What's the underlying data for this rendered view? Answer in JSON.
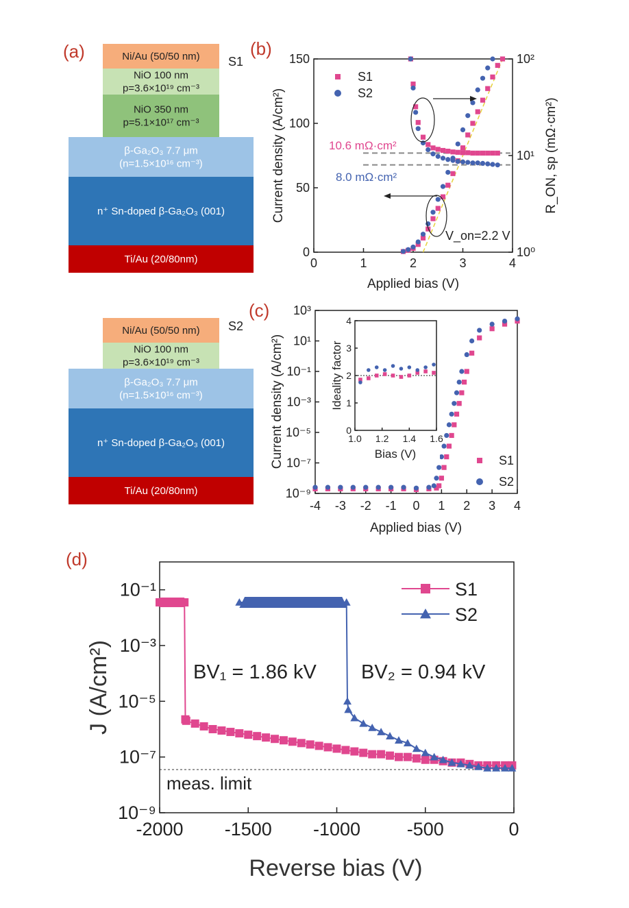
{
  "panels": {
    "a": {
      "label": "(a)",
      "sample": "S1",
      "layers": [
        {
          "lines": [
            "Ni/Au (50/50 nm)"
          ],
          "color": "#f6ad7b",
          "text_color": "#222"
        },
        {
          "lines": [
            "NiO 100 nm",
            "p=3.6×10¹⁹ cm⁻³"
          ],
          "color": "#c7e2b4",
          "text_color": "#222"
        },
        {
          "lines": [
            "NiO 350 nm",
            "p=5.1×10¹⁷ cm⁻³"
          ],
          "color": "#8fc27b",
          "text_color": "#222"
        },
        {
          "lines": [
            "β-Ga₂O₃ 7.7 μm",
            "(n=1.5×10¹⁶ cm⁻³)"
          ],
          "color": "#9dc3e6",
          "text_color": "#ffffff"
        },
        {
          "lines": [
            "n⁺ Sn-doped β-Ga₂O₃ (001)"
          ],
          "color": "#2e75b6",
          "text_color": "#ffffff"
        },
        {
          "lines": [
            "Ti/Au (20/80nm)"
          ],
          "color": "#c00000",
          "text_color": "#ffffff"
        }
      ]
    },
    "a2": {
      "sample": "S2",
      "layers": [
        {
          "lines": [
            "Ni/Au (50/50 nm)"
          ],
          "color": "#f6ad7b",
          "text_color": "#222"
        },
        {
          "lines": [
            "NiO 100 nm",
            "p=3.6×10¹⁹ cm⁻³"
          ],
          "color": "#c7e2b4",
          "text_color": "#222"
        },
        {
          "lines": [
            "β-Ga₂O₃ 7.7 μm",
            "(n=1.5×10¹⁶ cm⁻³)"
          ],
          "color": "#9dc3e6",
          "text_color": "#ffffff"
        },
        {
          "lines": [
            "n⁺ Sn-doped β-Ga₂O₃ (001)"
          ],
          "color": "#2e75b6",
          "text_color": "#ffffff"
        },
        {
          "lines": [
            "Ti/Au (20/80nm)"
          ],
          "color": "#c00000",
          "text_color": "#ffffff"
        }
      ]
    }
  },
  "colors": {
    "S1": "#e0478f",
    "S2": "#4463b0",
    "label": "#c0392b",
    "fit": "#e6d23a"
  },
  "chart_data": [
    {
      "id": "b",
      "label": "(b)",
      "type": "scatter",
      "xlabel": "Applied bias (V)",
      "ylabel": "Current density (A/cm²)",
      "y2label": "R_ON, sp (mΩ·cm²)",
      "xlim": [
        0,
        4
      ],
      "ylim": [
        0,
        150
      ],
      "y2lim": [
        1,
        100
      ],
      "y2scale": "log",
      "xticks": [
        "0",
        "1",
        "2",
        "3",
        "4"
      ],
      "yticks": [
        "0",
        "50",
        "100",
        "150"
      ],
      "y2ticks": [
        "10⁰",
        "10¹",
        "10²"
      ],
      "legend": [
        "S1",
        "S2"
      ],
      "legend_position": "top-left",
      "annotations": [
        "10.6 mΩ·cm²",
        "8.0 mΩ·cm²",
        "V_on=2.2 V"
      ],
      "series": [
        {
          "name": "S1",
          "kind": "J",
          "x": [
            1.8,
            1.9,
            2.0,
            2.1,
            2.2,
            2.3,
            2.4,
            2.5,
            2.6,
            2.7,
            2.8,
            2.9,
            3.0,
            3.1,
            3.2,
            3.3,
            3.4,
            3.5,
            3.6,
            3.7,
            3.8
          ],
          "y": [
            0.5,
            1.5,
            3,
            6,
            11,
            18,
            26,
            34,
            43,
            52,
            61,
            71,
            81,
            91,
            100,
            109,
            118,
            127,
            136,
            145,
            150
          ]
        },
        {
          "name": "S2",
          "kind": "J",
          "x": [
            1.8,
            1.9,
            2.0,
            2.1,
            2.2,
            2.3,
            2.4,
            2.5,
            2.6,
            2.7,
            2.8,
            2.9,
            3.0,
            3.1,
            3.2,
            3.3,
            3.4,
            3.5,
            3.6
          ],
          "y": [
            0.6,
            2,
            4,
            8,
            14,
            22,
            31,
            41,
            51,
            62,
            73,
            84,
            95,
            106,
            116,
            126,
            135,
            143,
            150
          ]
        },
        {
          "name": "S1",
          "kind": "Ron",
          "x": [
            1.95,
            2.0,
            2.05,
            2.1,
            2.2,
            2.3,
            2.4,
            2.5,
            2.6,
            2.7,
            2.8,
            2.9,
            3.0,
            3.1,
            3.2,
            3.3,
            3.4,
            3.5,
            3.6,
            3.7
          ],
          "y": [
            100,
            55,
            32,
            22,
            15.5,
            13,
            12,
            11.6,
            11.3,
            11.1,
            10.9,
            10.8,
            10.7,
            10.7,
            10.6,
            10.6,
            10.6,
            10.6,
            10.6,
            10.6
          ]
        },
        {
          "name": "S2",
          "kind": "Ron",
          "x": [
            1.95,
            2.0,
            2.05,
            2.1,
            2.2,
            2.3,
            2.4,
            2.5,
            2.6,
            2.7,
            2.8,
            2.9,
            3.0,
            3.1,
            3.2,
            3.3,
            3.4,
            3.5,
            3.6,
            3.7
          ],
          "y": [
            100,
            50,
            28,
            19,
            13.5,
            11.5,
            10.4,
            9.8,
            9.4,
            9.1,
            8.9,
            8.7,
            8.6,
            8.5,
            8.4,
            8.4,
            8.3,
            8.2,
            8.1,
            8.0
          ]
        }
      ]
    },
    {
      "id": "c",
      "label": "(c)",
      "type": "scatter",
      "xlabel": "Applied bias (V)",
      "ylabel": "Current density (A/cm²)",
      "xlim": [
        -4,
        4
      ],
      "ylim": [
        -9,
        3
      ],
      "yscale": "log",
      "xticks": [
        "-4",
        "-3",
        "-2",
        "-1",
        "0",
        "1",
        "2",
        "3",
        "4"
      ],
      "yticks": [
        "10⁻⁹",
        "10⁻⁷",
        "10⁻⁵",
        "10⁻³",
        "10⁻¹",
        "10¹",
        "10³"
      ],
      "legend": [
        "S1",
        "S2"
      ],
      "legend_position": "bottom-right",
      "series": [
        {
          "name": "S1",
          "x": [
            -4,
            -3.5,
            -3,
            -2.5,
            -2,
            -1.5,
            -1,
            -0.5,
            0,
            0.5,
            0.8,
            0.9,
            1.0,
            1.1,
            1.2,
            1.3,
            1.4,
            1.5,
            1.6,
            1.7,
            1.8,
            1.9,
            2.0,
            2.2,
            2.5,
            3.0,
            3.5,
            4.0
          ],
          "log_y": [
            -8.7,
            -8.7,
            -8.7,
            -8.7,
            -8.7,
            -8.7,
            -8.7,
            -8.7,
            -8.75,
            -8.7,
            -8.65,
            -8.5,
            -8.0,
            -7.3,
            -6.6,
            -5.9,
            -5.2,
            -4.5,
            -3.8,
            -3.1,
            -2.4,
            -1.7,
            -1.0,
            0.2,
            1.2,
            1.8,
            2.1,
            2.3
          ]
        },
        {
          "name": "S2",
          "x": [
            -4,
            -3.5,
            -3,
            -2.5,
            -2,
            -1.5,
            -1,
            -0.5,
            0,
            0.5,
            0.7,
            0.8,
            0.9,
            1.0,
            1.1,
            1.2,
            1.3,
            1.4,
            1.5,
            1.6,
            1.7,
            1.8,
            2.0,
            2.2,
            2.5,
            3.0,
            3.5,
            4.0
          ],
          "log_y": [
            -8.6,
            -8.6,
            -8.6,
            -8.6,
            -8.6,
            -8.6,
            -8.6,
            -8.6,
            -8.65,
            -8.6,
            -8.5,
            -8.0,
            -7.3,
            -6.6,
            -5.9,
            -5.2,
            -4.5,
            -3.8,
            -3.1,
            -2.4,
            -1.7,
            -1.0,
            0.1,
            1.0,
            1.7,
            2.1,
            2.3,
            2.45
          ]
        }
      ],
      "inset": {
        "xlabel": "Bias (V)",
        "ylabel": "Ideality factor",
        "xlim": [
          1.0,
          1.6
        ],
        "ylim": [
          0,
          4
        ],
        "xticks": [
          "1.0",
          "1.2",
          "1.4",
          "1.6"
        ],
        "yticks": [
          "0",
          "1",
          "2",
          "3",
          "4"
        ],
        "reference_line": 2,
        "series": [
          {
            "name": "S1",
            "x": [
              1.04,
              1.1,
              1.16,
              1.22,
              1.28,
              1.34,
              1.4,
              1.46,
              1.52,
              1.58
            ],
            "y": [
              1.85,
              1.9,
              2.0,
              2.05,
              2.0,
              1.95,
              2.0,
              2.1,
              2.15,
              2.1
            ]
          },
          {
            "name": "S2",
            "x": [
              1.04,
              1.1,
              1.16,
              1.22,
              1.28,
              1.34,
              1.4,
              1.46,
              1.52,
              1.58
            ],
            "y": [
              1.75,
              2.2,
              2.3,
              2.2,
              2.35,
              2.25,
              2.3,
              2.2,
              2.3,
              2.4
            ]
          }
        ]
      }
    },
    {
      "id": "d",
      "label": "(d)",
      "type": "line",
      "xlabel": "Reverse bias (V)",
      "ylabel": "J (A/cm²)",
      "xlim": [
        -2000,
        0
      ],
      "ylim": [
        -9,
        0
      ],
      "yscale": "log",
      "xticks": [
        "-2000",
        "-1500",
        "-1000",
        "-500",
        "0"
      ],
      "yticks": [
        "10⁻⁹",
        "10⁻⁷",
        "10⁻⁵",
        "10⁻³",
        "10⁻¹"
      ],
      "legend": [
        "S1",
        "S2"
      ],
      "legend_position": "top-right",
      "annotations": [
        "BV₁ = 1.86 kV",
        "BV₂ = 0.94 kV",
        "meas. limit"
      ],
      "meas_limit_log": -7.45,
      "series": [
        {
          "name": "S1",
          "marker": "square",
          "x": [
            -2000,
            -1950,
            -1900,
            -1860,
            -1855,
            -1850,
            -1800,
            -1750,
            -1700,
            -1650,
            -1600,
            -1550,
            -1500,
            -1450,
            -1400,
            -1350,
            -1300,
            -1250,
            -1200,
            -1150,
            -1100,
            -1050,
            -1000,
            -950,
            -900,
            -850,
            -800,
            -750,
            -700,
            -650,
            -600,
            -550,
            -500,
            -450,
            -400,
            -350,
            -300,
            -250,
            -200,
            -150,
            -100,
            -50,
            -10
          ],
          "log_y": [
            -1.45,
            -1.45,
            -1.45,
            -1.45,
            -5.65,
            -5.7,
            -5.8,
            -5.9,
            -6.0,
            -6.05,
            -6.1,
            -6.15,
            -6.2,
            -6.25,
            -6.3,
            -6.35,
            -6.4,
            -6.45,
            -6.5,
            -6.55,
            -6.6,
            -6.65,
            -6.7,
            -6.75,
            -6.8,
            -6.85,
            -6.9,
            -6.9,
            -6.95,
            -7.0,
            -7.0,
            -7.05,
            -7.1,
            -7.1,
            -7.15,
            -7.2,
            -7.2,
            -7.25,
            -7.3,
            -7.3,
            -7.3,
            -7.3,
            -7.3
          ]
        },
        {
          "name": "S2",
          "marker": "triangle",
          "x": [
            -1550,
            -1400,
            -1200,
            -1000,
            -945,
            -940,
            -935,
            -900,
            -850,
            -800,
            -750,
            -700,
            -650,
            -600,
            -550,
            -500,
            -450,
            -400,
            -350,
            -300,
            -250,
            -200,
            -150,
            -100,
            -50,
            -10
          ],
          "log_y": [
            -1.45,
            -1.45,
            -1.45,
            -1.45,
            -1.45,
            -5.0,
            -5.3,
            -5.6,
            -5.8,
            -5.95,
            -6.1,
            -6.25,
            -6.4,
            -6.5,
            -6.7,
            -6.85,
            -7.0,
            -7.1,
            -7.2,
            -7.25,
            -7.3,
            -7.35,
            -7.4,
            -7.4,
            -7.4,
            -7.4
          ]
        }
      ]
    }
  ]
}
